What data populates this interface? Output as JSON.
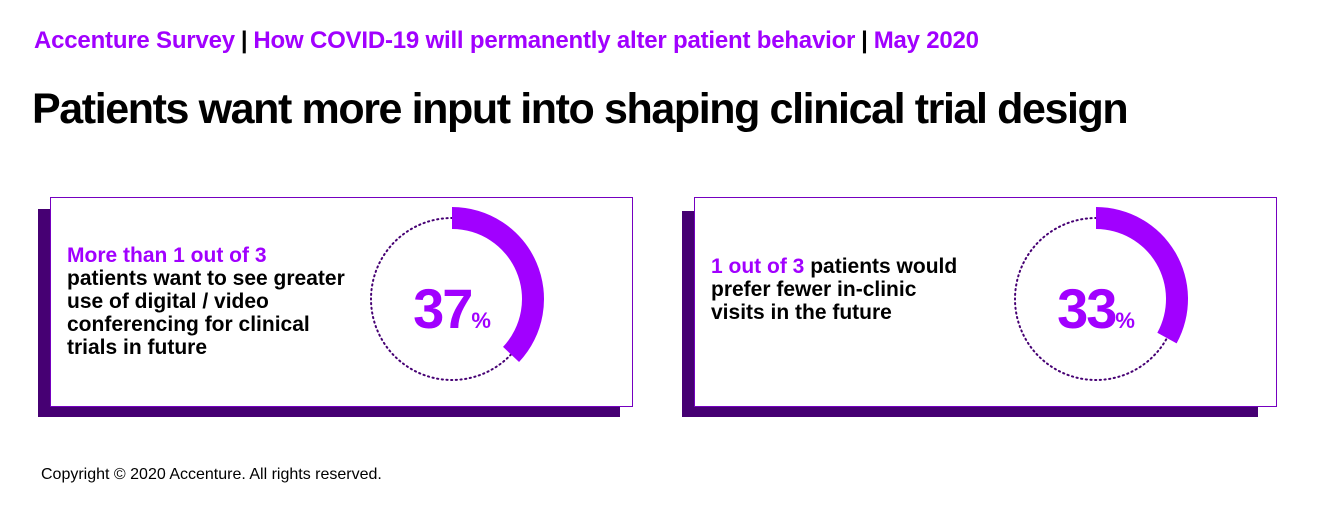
{
  "header": {
    "part1": "Accenture Survey",
    "separator": "|",
    "part2": "How COVID-19 will permanently alter patient behavior",
    "part3": "May 2020"
  },
  "title": "Patients want more input into shaping clinical trial design",
  "colors": {
    "accent": "#a100ff",
    "shadow": "#460073",
    "border": "#7500c0",
    "dotted": "#460073"
  },
  "cards": [
    {
      "highlight": "More than 1 out of 3",
      "text": "patients want to see greater use of digital / video conferencing for clinical trials in future",
      "value": "37",
      "unit": "%"
    },
    {
      "highlight": "1 out of 3",
      "text": "patients would prefer fewer in-clinic visits in the future",
      "value": "33",
      "unit": "%"
    }
  ],
  "chart_data": [
    {
      "type": "pie",
      "values": [
        37,
        63
      ],
      "categories": [
        "More than 1 out of 3 patients want to see greater use of digital / video conferencing for clinical trials in future",
        ""
      ],
      "data_label": "37%"
    },
    {
      "type": "pie",
      "values": [
        33,
        67
      ],
      "categories": [
        "1 out of 3 patients would prefer fewer in-clinic visits in the future",
        ""
      ],
      "data_label": "33%"
    }
  ],
  "footer": "Copyright © 2020 Accenture. All rights reserved."
}
